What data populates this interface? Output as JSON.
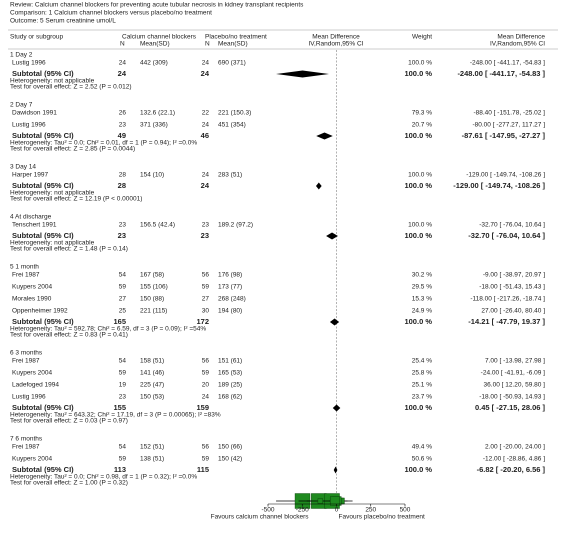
{
  "chart_data": {
    "type": "forest",
    "review": "Review:  Calcium channel blockers for preventing acute tubular necrosis in kidney transplant recipients",
    "comparison": "Comparison:  1 Calcium channel blockers versus placebo/no treatment",
    "outcome": "Outcome:  5 Serum creatinine umol/L",
    "columns": {
      "study": "Study or subgroup",
      "treat": "Calcium channel blockers",
      "treat_n": "N",
      "treat_mean": "Mean(SD)",
      "ctrl": "Placebo/no treatment",
      "ctrl_n": "N",
      "ctrl_mean": "Mean(SD)",
      "plot_title": "Mean Difference",
      "plot_sub": "IV,Random,95% CI",
      "weight": "Weight",
      "effect_title": "Mean Difference",
      "effect_sub": "IV,Random,95% CI"
    },
    "xlim": [
      -500,
      500
    ],
    "xticks": [
      -500,
      -250,
      0,
      250,
      500
    ],
    "favours_left": "Favours calcium channel blockers",
    "favours_right": "Favours placebo/no treatment",
    "box_color": "#1f8a1f",
    "diamond_color": "#000000",
    "groups": [
      {
        "label": "1 Day 2",
        "studies": [
          {
            "name": "Lustig 1996",
            "n1": 24,
            "m1": "442 (309)",
            "n2": 24,
            "m2": "690 (371)",
            "weight": 100,
            "weight_label": "100.0 %",
            "md": -248,
            "ci": [
              -441.17,
              -54.83
            ],
            "result": "-248.00 [ -441.17, -54.83 ]"
          }
        ],
        "subtotal": {
          "label": "Subtotal (95% CI)",
          "n1": 24,
          "n2": 24,
          "weight": 100,
          "weight_label": "100.0 %",
          "md": -248,
          "ci": [
            -441.17,
            -54.83
          ],
          "result": "-248.00 [ -441.17, -54.83 ]"
        },
        "heterogeneity": "Heterogeneity: not applicable",
        "test": "Test for overall effect: Z = 2.52 (P = 0.012)"
      },
      {
        "label": "2 Day 7",
        "studies": [
          {
            "name": "Dawidson 1991",
            "n1": 26,
            "m1": "132.6 (22.1)",
            "n2": 22,
            "m2": "221 (150.3)",
            "weight": 79.3,
            "weight_label": "79.3 %",
            "md": -88.4,
            "ci": [
              -151.78,
              -25.02
            ],
            "result": "-88.40 [ -151.78, -25.02 ]"
          },
          {
            "name": "Lustig 1996",
            "n1": 23,
            "m1": "371 (336)",
            "n2": 24,
            "m2": "451 (354)",
            "weight": 20.7,
            "weight_label": "20.7 %",
            "md": -80,
            "ci": [
              -277.27,
              117.27
            ],
            "result": "-80.00 [ -277.27, 117.27 ]"
          }
        ],
        "subtotal": {
          "label": "Subtotal (95% CI)",
          "n1": 49,
          "n2": 46,
          "weight": 100,
          "weight_label": "100.0 %",
          "md": -87.61,
          "ci": [
            -147.95,
            -27.27
          ],
          "result": "-87.61 [ -147.95, -27.27 ]"
        },
        "heterogeneity": "Heterogeneity: Tau² = 0.0; Chi² = 0.01, df = 1 (P = 0.94); I² =0.0%",
        "test": "Test for overall effect: Z = 2.85 (P = 0.0044)"
      },
      {
        "label": "3 Day 14",
        "studies": [
          {
            "name": "Harper 1997",
            "n1": 28,
            "m1": "154 (10)",
            "n2": 24,
            "m2": "283 (51)",
            "weight": 100,
            "weight_label": "100.0 %",
            "md": -129,
            "ci": [
              -149.74,
              -108.26
            ],
            "result": "-129.00 [ -149.74, -108.26 ]"
          }
        ],
        "subtotal": {
          "label": "Subtotal (95% CI)",
          "n1": 28,
          "n2": 24,
          "weight": 100,
          "weight_label": "100.0 %",
          "md": -129,
          "ci": [
            -149.74,
            -108.26
          ],
          "result": "-129.00 [ -149.74, -108.26 ]"
        },
        "heterogeneity": "Heterogeneity: not applicable",
        "test": "Test for overall effect: Z = 12.19 (P < 0.00001)"
      },
      {
        "label": "4 At discharge",
        "studies": [
          {
            "name": "Tenschert 1991",
            "n1": 23,
            "m1": "156.5 (42.4)",
            "n2": 23,
            "m2": "189.2 (97.2)",
            "weight": 100,
            "weight_label": "100.0 %",
            "md": -32.7,
            "ci": [
              -76.04,
              10.64
            ],
            "result": "-32.70 [ -76.04, 10.64 ]"
          }
        ],
        "subtotal": {
          "label": "Subtotal (95% CI)",
          "n1": 23,
          "n2": 23,
          "weight": 100,
          "weight_label": "100.0 %",
          "md": -32.7,
          "ci": [
            -76.04,
            10.64
          ],
          "result": "-32.70 [ -76.04, 10.64 ]"
        },
        "heterogeneity": "Heterogeneity: not applicable",
        "test": "Test for overall effect: Z = 1.48 (P = 0.14)"
      },
      {
        "label": "5 1 month",
        "studies": [
          {
            "name": "Frei 1987",
            "n1": 54,
            "m1": "167 (58)",
            "n2": 56,
            "m2": "176 (98)",
            "weight": 30.2,
            "weight_label": "30.2 %",
            "md": -9,
            "ci": [
              -38.97,
              20.97
            ],
            "result": "-9.00 [ -38.97, 20.97 ]"
          },
          {
            "name": "Kuypers 2004",
            "n1": 59,
            "m1": "155 (106)",
            "n2": 59,
            "m2": "173 (77)",
            "weight": 29.5,
            "weight_label": "29.5 %",
            "md": -18,
            "ci": [
              -51.43,
              15.43
            ],
            "result": "-18.00 [ -51.43, 15.43 ]"
          },
          {
            "name": "Morales 1990",
            "n1": 27,
            "m1": "150 (88)",
            "n2": 27,
            "m2": "268 (248)",
            "weight": 15.3,
            "weight_label": "15.3 %",
            "md": -118,
            "ci": [
              -217.26,
              -18.74
            ],
            "result": "-118.00 [ -217.26, -18.74 ]"
          },
          {
            "name": "Oppenheimer 1992",
            "n1": 25,
            "m1": "221 (115)",
            "n2": 30,
            "m2": "194 (80)",
            "weight": 24.9,
            "weight_label": "24.9 %",
            "md": 27,
            "ci": [
              -26.4,
              80.4
            ],
            "result": "27.00 [ -26.40, 80.40 ]"
          }
        ],
        "subtotal": {
          "label": "Subtotal (95% CI)",
          "n1": 165,
          "n2": 172,
          "weight": 100,
          "weight_label": "100.0 %",
          "md": -14.21,
          "ci": [
            -47.79,
            19.37
          ],
          "result": "-14.21 [ -47.79, 19.37 ]"
        },
        "heterogeneity": "Heterogeneity: Tau² = 592.78; Chi² = 6.59, df = 3 (P = 0.09); I² =54%",
        "test": "Test for overall effect: Z = 0.83 (P = 0.41)"
      },
      {
        "label": "6 3 months",
        "studies": [
          {
            "name": "Frei 1987",
            "n1": 54,
            "m1": "158 (51)",
            "n2": 56,
            "m2": "151 (61)",
            "weight": 25.4,
            "weight_label": "25.4 %",
            "md": 7,
            "ci": [
              -13.98,
              27.98
            ],
            "result": "7.00 [ -13.98, 27.98 ]"
          },
          {
            "name": "Kuypers 2004",
            "n1": 59,
            "m1": "141 (46)",
            "n2": 59,
            "m2": "165 (53)",
            "weight": 25.8,
            "weight_label": "25.8 %",
            "md": -24,
            "ci": [
              -41.91,
              -6.09
            ],
            "result": "-24.00 [ -41.91, -6.09 ]"
          },
          {
            "name": "Ladefoged 1994",
            "n1": 19,
            "m1": "225 (47)",
            "n2": 20,
            "m2": "189 (25)",
            "weight": 25.1,
            "weight_label": "25.1 %",
            "md": 36,
            "ci": [
              12.2,
              59.8
            ],
            "result": "36.00 [ 12.20, 59.80 ]"
          },
          {
            "name": "Lustig 1996",
            "n1": 23,
            "m1": "150 (53)",
            "n2": 24,
            "m2": "168 (62)",
            "weight": 23.7,
            "weight_label": "23.7 %",
            "md": -18,
            "ci": [
              -50.93,
              14.93
            ],
            "result": "-18.00 [ -50.93, 14.93 ]"
          }
        ],
        "subtotal": {
          "label": "Subtotal (95% CI)",
          "n1": 155,
          "n2": 159,
          "weight": 100,
          "weight_label": "100.0 %",
          "md": 0.45,
          "ci": [
            -27.15,
            28.06
          ],
          "result": "0.45 [ -27.15, 28.06 ]"
        },
        "heterogeneity": "Heterogeneity: Tau² = 643.32; Chi² = 17.19, df = 3 (P = 0.00065); I² =83%",
        "test": "Test for overall effect: Z = 0.03 (P = 0.97)"
      },
      {
        "label": "7 6 months",
        "studies": [
          {
            "name": "Frei 1987",
            "n1": 54,
            "m1": "152 (51)",
            "n2": 56,
            "m2": "150 (66)",
            "weight": 49.4,
            "weight_label": "49.4 %",
            "md": 2,
            "ci": [
              -20,
              24
            ],
            "result": "2.00 [ -20.00, 24.00 ]"
          },
          {
            "name": "Kuypers 2004",
            "n1": 59,
            "m1": "138 (51)",
            "n2": 59,
            "m2": "150 (42)",
            "weight": 50.6,
            "weight_label": "50.6 %",
            "md": -12,
            "ci": [
              -28.86,
              4.86
            ],
            "result": "-12.00 [ -28.86, 4.86 ]"
          }
        ],
        "subtotal": {
          "label": "Subtotal (95% CI)",
          "n1": 113,
          "n2": 115,
          "weight": 100,
          "weight_label": "100.0 %",
          "md": -6.82,
          "ci": [
            -20.2,
            6.56
          ],
          "result": "-6.82 [ -20.20, 6.56 ]"
        },
        "heterogeneity": "Heterogeneity: Tau² = 0.0; Chi² = 0.98, df = 1 (P = 0.32); I² =0.0%",
        "test": "Test for overall effect: Z = 1.00 (P = 0.32)"
      }
    ]
  }
}
